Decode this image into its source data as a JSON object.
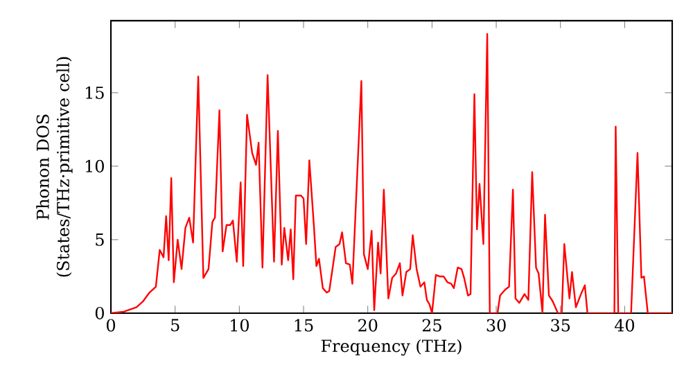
{
  "chart_data": {
    "type": "line",
    "xlabel": "Frequency (THz)",
    "ylabel": "Phonon DOS (States/THz·primitive cell)",
    "xlim": [
      0,
      43.7
    ],
    "ylim": [
      0,
      19.9
    ],
    "xticks": [
      0,
      5,
      10,
      15,
      20,
      25,
      30,
      35,
      40
    ],
    "yticks": [
      0,
      5,
      10,
      15
    ],
    "series": [
      {
        "color": "#ff0000",
        "x": [
          0,
          1,
          2,
          2.5,
          3,
          3.5,
          3.8,
          4.1,
          4.3,
          4.5,
          4.7,
          4.9,
          5.2,
          5.5,
          5.8,
          6.1,
          6.4,
          6.8,
          7.2,
          7.6,
          7.9,
          8.1,
          8.45,
          8.7,
          9.0,
          9.3,
          9.5,
          9.8,
          10.1,
          10.3,
          10.6,
          11.0,
          11.3,
          11.5,
          11.8,
          12.2,
          12.7,
          13.0,
          13.3,
          13.5,
          13.8,
          14.0,
          14.2,
          14.4,
          14.8,
          15.0,
          15.2,
          15.45,
          15.8,
          16.0,
          16.2,
          16.5,
          16.8,
          17.0,
          17.5,
          17.8,
          18.0,
          18.3,
          18.6,
          18.8,
          19.5,
          19.7,
          20.0,
          20.3,
          20.5,
          20.8,
          21.0,
          21.25,
          21.6,
          21.9,
          22.2,
          22.5,
          22.7,
          23.0,
          23.3,
          23.5,
          23.8,
          24.1,
          24.4,
          24.6,
          24.8,
          25.0,
          25.3,
          25.6,
          25.9,
          26.2,
          26.5,
          26.7,
          27.0,
          27.3,
          27.5,
          27.8,
          28.0,
          28.3,
          28.5,
          28.7,
          29.0,
          29.3,
          29.5,
          30.1,
          30.3,
          30.7,
          31.0,
          31.3,
          31.5,
          31.8,
          32.2,
          32.5,
          32.8,
          33.1,
          33.3,
          33.6,
          33.8,
          34.1,
          34.4,
          34.8,
          35.1,
          35.3,
          35.7,
          35.9,
          36.2,
          36.6,
          36.9,
          37.1,
          39.2,
          39.3,
          39.5,
          40.5,
          41.0,
          41.3,
          41.5,
          41.8,
          43.7
        ],
        "values": [
          0,
          0.1,
          0.4,
          0.8,
          1.4,
          1.8,
          4.3,
          3.8,
          6.6,
          3.6,
          9.2,
          2.1,
          5.0,
          3.0,
          5.8,
          6.5,
          4.8,
          16.1,
          2.4,
          3.0,
          6.2,
          6.5,
          13.8,
          4.2,
          6.0,
          6.0,
          6.3,
          3.5,
          8.9,
          3.2,
          13.5,
          10.9,
          10.1,
          11.6,
          3.1,
          16.2,
          3.5,
          12.4,
          3.3,
          5.8,
          3.6,
          5.7,
          2.3,
          8.0,
          8.0,
          7.8,
          4.7,
          10.4,
          6.0,
          3.2,
          3.7,
          1.7,
          1.4,
          1.5,
          4.5,
          4.7,
          5.5,
          3.4,
          3.3,
          2.0,
          15.8,
          4.0,
          3.0,
          5.6,
          0.2,
          4.8,
          2.7,
          8.4,
          1.0,
          2.4,
          2.7,
          3.4,
          1.2,
          2.8,
          3.0,
          5.3,
          3.0,
          1.8,
          2.1,
          0.9,
          0.6,
          0,
          2.6,
          2.5,
          2.5,
          2.1,
          2.0,
          1.7,
          3.1,
          3.0,
          2.4,
          1.2,
          1.3,
          14.9,
          5.7,
          8.8,
          4.7,
          19.0,
          0,
          0,
          1.2,
          1.6,
          1.8,
          8.4,
          1.0,
          0.7,
          1.3,
          0.9,
          9.6,
          3.1,
          2.7,
          0,
          6.7,
          1.2,
          0.8,
          0,
          0,
          4.7,
          1.0,
          2.8,
          0.4,
          1.3,
          1.9,
          0,
          0,
          12.7,
          0,
          0,
          10.9,
          2.4,
          2.5,
          0,
          0
        ]
      }
    ]
  }
}
